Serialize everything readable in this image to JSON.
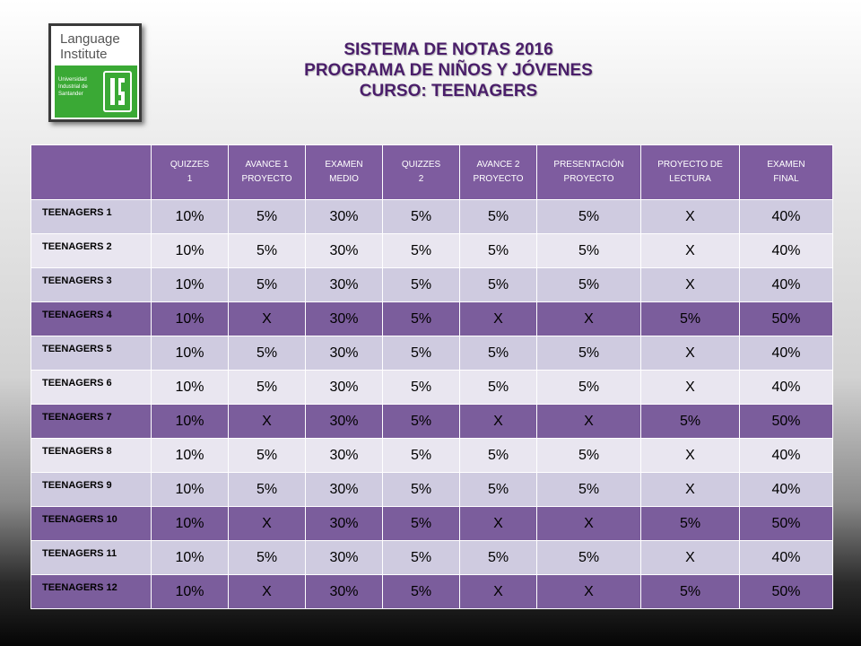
{
  "logo": {
    "title": "Language\nInstitute",
    "university": "Universidad\nIndustrial de\nSantander"
  },
  "titles": {
    "line1": "SISTEMA DE NOTAS 2016",
    "line2": "PROGRAMA DE NIÑOS Y JÓVENES",
    "line3": "CURSO: TEENAGERS"
  },
  "table": {
    "corner": "",
    "headers": [
      "QUIZZES\n1",
      "AVANCE 1\nPROYECTO",
      "EXAMEN\nMEDIO",
      "QUIZZES\n2",
      "AVANCE 2\nPROYECTO",
      "PRESENTACIÓN\nPROYECTO",
      "PROYECTO DE\nLECTURA",
      "EXAMEN\nFINAL"
    ],
    "rows": [
      {
        "label": "TEENAGERS  1",
        "highlight": false,
        "values": [
          "10%",
          "5%",
          "30%",
          "5%",
          "5%",
          "5%",
          "X",
          "40%"
        ]
      },
      {
        "label": "TEENAGERS  2",
        "highlight": false,
        "values": [
          "10%",
          "5%",
          "30%",
          "5%",
          "5%",
          "5%",
          "X",
          "40%"
        ]
      },
      {
        "label": "TEENAGERS  3",
        "highlight": false,
        "values": [
          "10%",
          "5%",
          "30%",
          "5%",
          "5%",
          "5%",
          "X",
          "40%"
        ]
      },
      {
        "label": "TEENAGERS  4",
        "highlight": true,
        "values": [
          "10%",
          "X",
          "30%",
          "5%",
          "X",
          "X",
          "5%",
          "50%"
        ]
      },
      {
        "label": "TEENAGERS  5",
        "highlight": false,
        "values": [
          "10%",
          "5%",
          "30%",
          "5%",
          "5%",
          "5%",
          "X",
          "40%"
        ]
      },
      {
        "label": "TEENAGERS  6",
        "highlight": false,
        "values": [
          "10%",
          "5%",
          "30%",
          "5%",
          "5%",
          "5%",
          "X",
          "40%"
        ]
      },
      {
        "label": "TEENAGERS  7",
        "highlight": true,
        "values": [
          "10%",
          "X",
          "30%",
          "5%",
          "X",
          "X",
          "5%",
          "50%"
        ]
      },
      {
        "label": "TEENAGERS  8",
        "highlight": false,
        "values": [
          "10%",
          "5%",
          "30%",
          "5%",
          "5%",
          "5%",
          "X",
          "40%"
        ]
      },
      {
        "label": "TEENAGERS  9",
        "highlight": false,
        "values": [
          "10%",
          "5%",
          "30%",
          "5%",
          "5%",
          "5%",
          "X",
          "40%"
        ]
      },
      {
        "label": "TEENAGERS  10",
        "highlight": true,
        "values": [
          "10%",
          "X",
          "30%",
          "5%",
          "X",
          "X",
          "5%",
          "50%"
        ]
      },
      {
        "label": "TEENAGERS  11",
        "highlight": false,
        "values": [
          "10%",
          "5%",
          "30%",
          "5%",
          "5%",
          "5%",
          "X",
          "40%"
        ]
      },
      {
        "label": "TEENAGERS  12",
        "highlight": true,
        "values": [
          "10%",
          "X",
          "30%",
          "5%",
          "X",
          "X",
          "5%",
          "50%"
        ]
      }
    ]
  },
  "colors": {
    "header": "#7e5c9f",
    "highlight_row": "#7b5d9c",
    "row_dark": "#cfcbe0",
    "row_light": "#e9e6f0",
    "title_text": "#4a1e6a",
    "logo_green": "#3aa935"
  }
}
